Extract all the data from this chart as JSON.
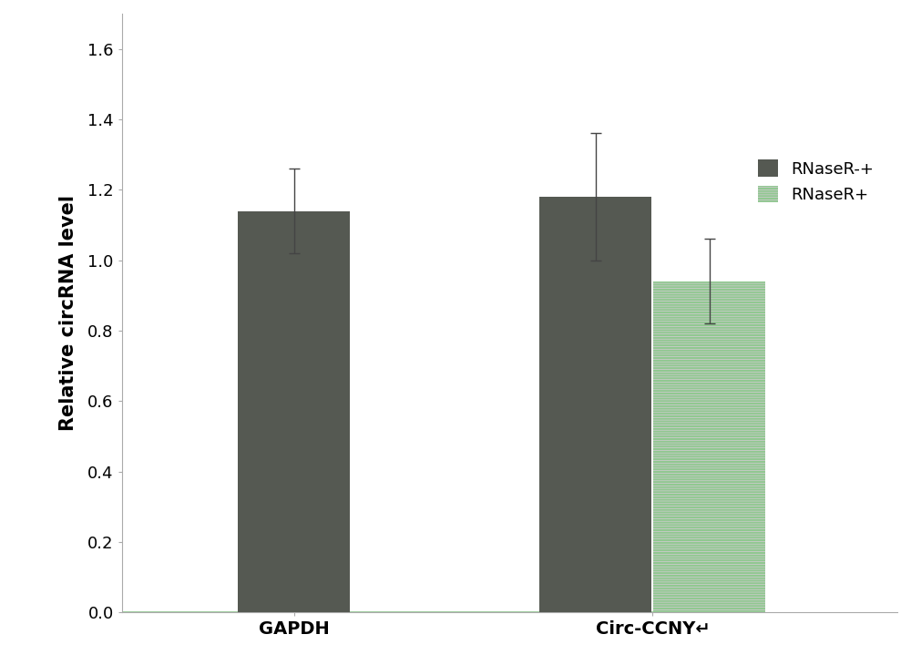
{
  "categories": [
    "GAPDH",
    "Circ-CCNY↵"
  ],
  "rnaser_minus_values": [
    1.14,
    1.18
  ],
  "rnaser_plus_values": [
    null,
    0.94
  ],
  "rnaser_minus_errors": [
    0.12,
    0.18
  ],
  "rnaser_plus_errors": [
    null,
    0.12
  ],
  "dark_color": "#555952",
  "light_face_color": "#d8ccd8",
  "light_hatch_color": "#90c890",
  "ylabel": "Relative circRNA level",
  "ylim": [
    0.0,
    1.7
  ],
  "yticks": [
    0.0,
    0.2,
    0.4,
    0.6,
    0.8,
    1.0,
    1.2,
    1.4,
    1.6
  ],
  "legend_labels": [
    "RNaseR-+",
    "RNaseR+"
  ],
  "bar_width": 0.13,
  "background_color": "#ffffff",
  "label_fontsize": 15,
  "tick_fontsize": 13,
  "legend_fontsize": 13
}
